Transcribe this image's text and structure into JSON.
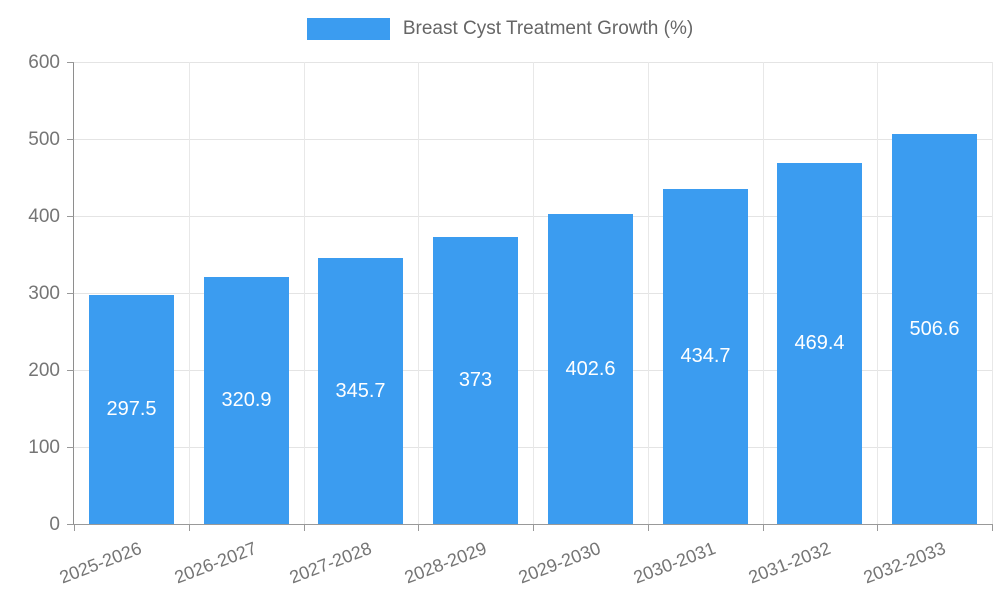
{
  "chart_data": {
    "type": "bar",
    "title": "Breast Cyst Treatment Growth (%)",
    "legend": {
      "position": "top",
      "entries": [
        "Breast Cyst Treatment Growth (%)"
      ]
    },
    "categories": [
      "2025-2026",
      "2026-2027",
      "2027-2028",
      "2028-2029",
      "2029-2030",
      "2030-2031",
      "2031-2032",
      "2032-2033"
    ],
    "series": [
      {
        "name": "Breast Cyst Treatment Growth (%)",
        "values": [
          297.5,
          320.9,
          345.7,
          373,
          402.6,
          434.7,
          469.4,
          506.6
        ]
      }
    ],
    "xlabel": "",
    "ylabel": "",
    "ylim": [
      0,
      600
    ],
    "yticks": [
      0,
      100,
      200,
      300,
      400,
      500,
      600
    ],
    "grid": true,
    "value_labels_shown": true,
    "colors": {
      "bar": "#3b9cf0",
      "value_label": "#ffffff",
      "axis_text": "#757575",
      "title_text": "#666666",
      "gridline": "#e4e4e4",
      "axis_line": "#999999"
    }
  }
}
